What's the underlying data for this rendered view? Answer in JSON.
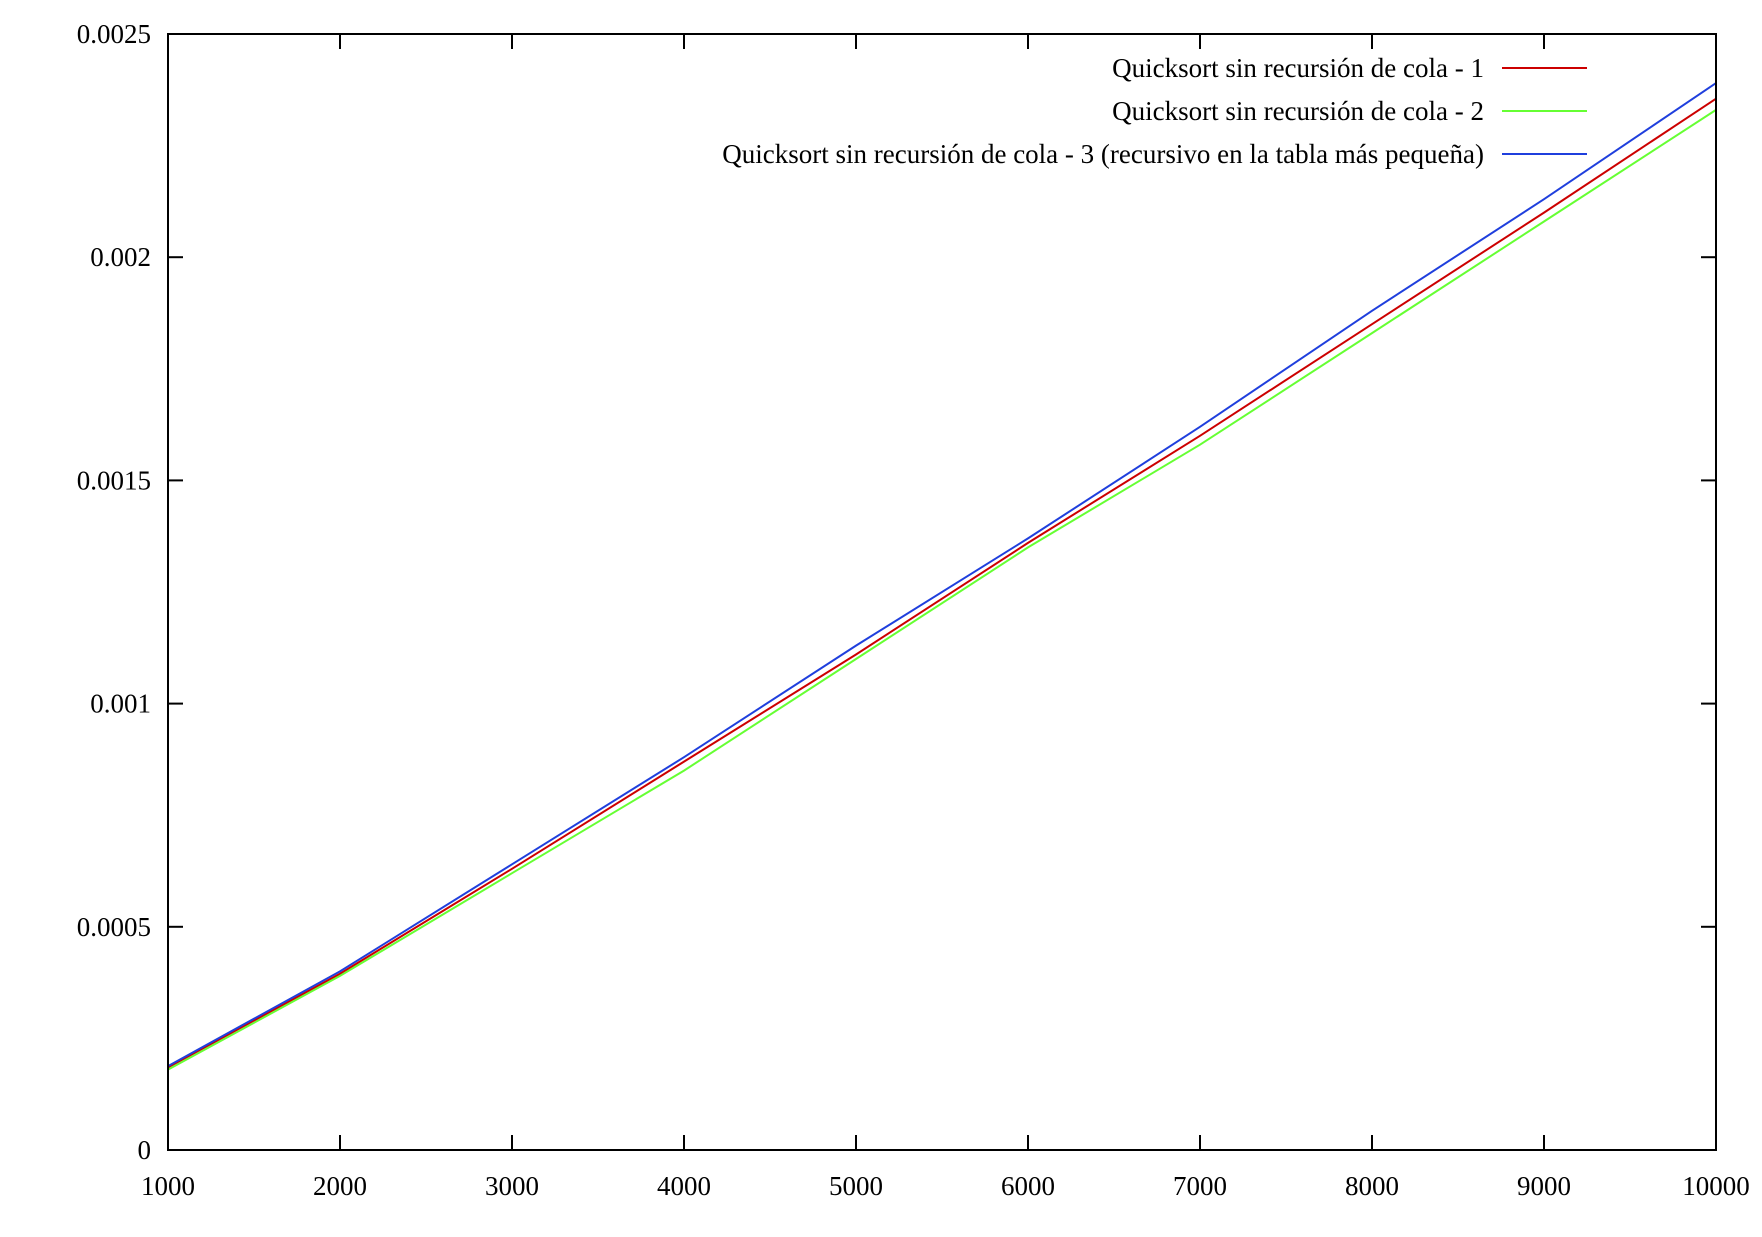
{
  "chart_data": {
    "type": "line",
    "title": "",
    "xlabel": "",
    "ylabel": "",
    "xlim": [
      1000,
      10000
    ],
    "ylim": [
      0,
      0.0025
    ],
    "grid": false,
    "legend_position": "top-right",
    "x_ticks": [
      "1000",
      "2000",
      "3000",
      "4000",
      "5000",
      "6000",
      "7000",
      "8000",
      "9000",
      "10000"
    ],
    "y_ticks": [
      "0",
      "0.0005",
      "0.001",
      "0.0015",
      "0.002",
      "0.0025"
    ],
    "x_tick_values": [
      1000,
      2000,
      3000,
      4000,
      5000,
      6000,
      7000,
      8000,
      9000,
      10000
    ],
    "y_tick_values": [
      0,
      0.0005,
      0.001,
      0.0015,
      0.002,
      0.0025
    ],
    "x": [
      1000,
      2000,
      3000,
      4000,
      5000,
      6000,
      7000,
      8000,
      9000,
      10000
    ],
    "series": [
      {
        "name": "Quicksort sin recursión de cola - 1",
        "color": "#cc0000",
        "values": [
          0.000185,
          0.000395,
          0.00063,
          0.00087,
          0.00111,
          0.00136,
          0.0016,
          0.00185,
          0.0021,
          0.002355
        ]
      },
      {
        "name": "Quicksort sin recursión de cola - 2",
        "color": "#66ff33",
        "values": [
          0.00018,
          0.00039,
          0.00062,
          0.00085,
          0.0011,
          0.00135,
          0.00158,
          0.00183,
          0.00208,
          0.00233
        ]
      },
      {
        "name": "Quicksort sin recursión de cola - 3 (recursivo en la tabla más pequeña)",
        "color": "#1f3fdd",
        "values": [
          0.000188,
          0.0004,
          0.00064,
          0.00088,
          0.00113,
          0.00137,
          0.00162,
          0.00188,
          0.00213,
          0.00239
        ]
      }
    ]
  }
}
